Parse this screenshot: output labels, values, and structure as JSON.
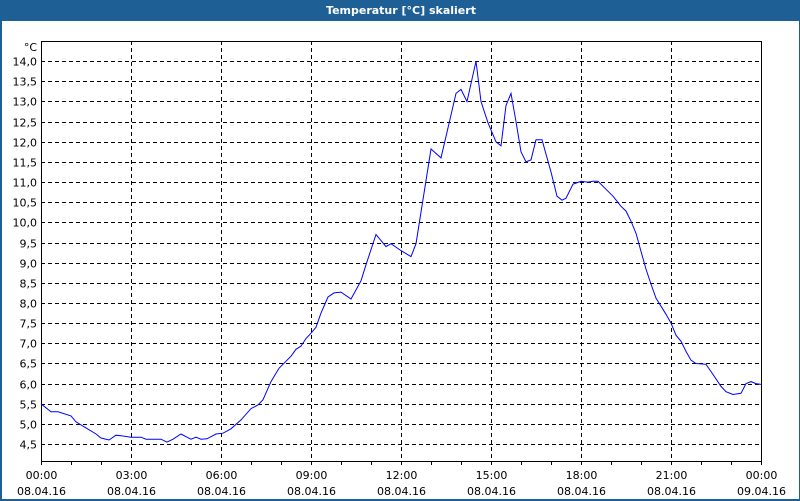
{
  "window": {
    "title": "Temperatur [°C] skaliert"
  },
  "chart_data": {
    "type": "line",
    "title": "Temperatur [°C] skaliert",
    "ylabel": "°C",
    "xlabel": "",
    "ylim": [
      4.08,
      14.5
    ],
    "yticks": [
      "4,5",
      "5,0",
      "5,5",
      "6,0",
      "6,5",
      "7,0",
      "7,5",
      "8,0",
      "8,5",
      "9,0",
      "9,5",
      "10,0",
      "10,5",
      "11,0",
      "11,5",
      "12,0",
      "12,5",
      "13,0",
      "13,5",
      "14,0"
    ],
    "xlim": [
      "2016-04-08 00:00",
      "2016-04-09 00:00"
    ],
    "xticks": [
      {
        "time": "00:00",
        "date": "08.04.16"
      },
      {
        "time": "03:00",
        "date": "08.04.16"
      },
      {
        "time": "06:00",
        "date": "08.04.16"
      },
      {
        "time": "09:00",
        "date": "08.04.16"
      },
      {
        "time": "12:00",
        "date": "08.04.16"
      },
      {
        "time": "15:00",
        "date": "08.04.16"
      },
      {
        "time": "18:00",
        "date": "08.04.16"
      },
      {
        "time": "21:00",
        "date": "08.04.16"
      },
      {
        "time": "00:00",
        "date": "09.04.16"
      }
    ],
    "grid": true,
    "line_color": "#0000ff",
    "series": [
      {
        "x": [
          "00:00",
          "00:20",
          "00:34",
          "01:00",
          "01:10",
          "01:30",
          "01:50",
          "02:00",
          "02:16",
          "02:30",
          "02:44",
          "03:00",
          "03:20",
          "03:30",
          "04:00",
          "04:12",
          "04:24",
          "04:40",
          "04:52",
          "05:00",
          "05:10",
          "05:20",
          "05:32",
          "05:50",
          "06:04",
          "06:20",
          "06:40",
          "07:00",
          "07:14",
          "07:24",
          "07:40",
          "07:56",
          "08:20",
          "08:30",
          "08:40",
          "08:50",
          "09:00",
          "09:10",
          "09:20",
          "09:34",
          "09:46",
          "10:00",
          "10:20",
          "10:40",
          "10:50",
          "11:10",
          "11:30",
          "11:40",
          "12:00",
          "12:20",
          "12:30",
          "13:00",
          "13:20",
          "13:30",
          "13:50",
          "14:00",
          "14:12",
          "14:30",
          "14:40",
          "14:54",
          "15:10",
          "15:20",
          "15:30",
          "15:40",
          "15:50",
          "16:00",
          "16:10",
          "16:20",
          "16:30",
          "16:42",
          "17:00",
          "17:12",
          "17:22",
          "17:30",
          "17:44",
          "18:00",
          "18:14",
          "18:24",
          "18:34",
          "18:50",
          "19:04",
          "19:20",
          "19:30",
          "19:40",
          "19:50",
          "20:00",
          "20:10",
          "20:20",
          "20:30",
          "20:40",
          "20:50",
          "21:00",
          "21:10",
          "21:20",
          "21:30",
          "21:40",
          "21:50",
          "22:10",
          "22:20",
          "22:40",
          "22:50",
          "23:04",
          "23:20",
          "23:30",
          "23:40",
          "23:50",
          "24:00"
        ],
        "values": [
          5.5,
          5.3,
          5.3,
          5.2,
          5.05,
          4.9,
          4.75,
          4.65,
          4.6,
          4.72,
          4.7,
          4.67,
          4.67,
          4.62,
          4.62,
          4.55,
          4.62,
          4.75,
          4.67,
          4.62,
          4.67,
          4.62,
          4.63,
          4.75,
          4.77,
          4.88,
          5.1,
          5.38,
          5.47,
          5.6,
          6.05,
          6.38,
          6.68,
          6.85,
          6.93,
          7.12,
          7.25,
          7.4,
          7.75,
          8.15,
          8.25,
          8.27,
          8.1,
          8.55,
          8.95,
          9.7,
          9.4,
          9.47,
          9.3,
          9.15,
          9.47,
          11.82,
          11.6,
          12.13,
          13.2,
          13.3,
          13.0,
          14.0,
          13.0,
          12.47,
          12.0,
          11.9,
          12.9,
          13.2,
          12.5,
          11.75,
          11.5,
          11.55,
          12.05,
          12.05,
          11.25,
          10.65,
          10.55,
          10.6,
          10.95,
          11.02,
          11.0,
          11.02,
          11.02,
          10.82,
          10.65,
          10.4,
          10.28,
          10.03,
          9.73,
          9.28,
          8.84,
          8.47,
          8.12,
          7.92,
          7.72,
          7.5,
          7.2,
          7.05,
          6.8,
          6.58,
          6.5,
          6.48,
          6.3,
          5.93,
          5.8,
          5.73,
          5.76,
          6.0,
          6.05,
          6.0,
          5.98
        ]
      }
    ]
  }
}
